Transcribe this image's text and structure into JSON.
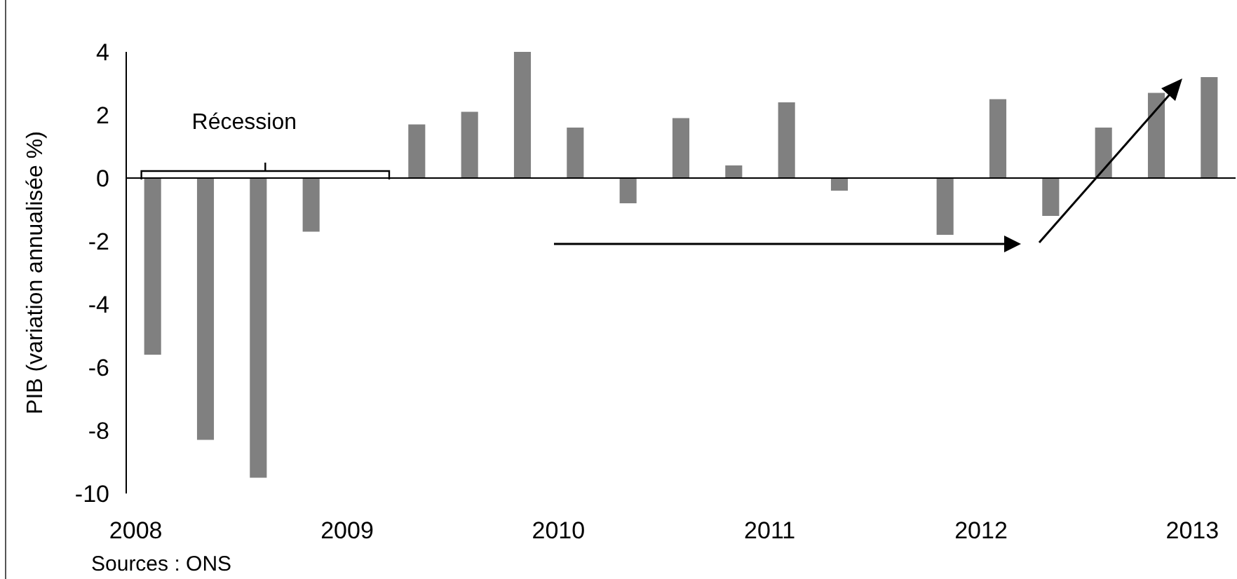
{
  "chart_data": {
    "type": "bar",
    "ylabel": "PIB (variation annualisée %)",
    "categories": [
      "2008",
      null,
      null,
      null,
      "2009",
      null,
      null,
      null,
      "2010",
      null,
      null,
      null,
      "2011",
      null,
      null,
      null,
      "2012",
      null,
      null,
      null,
      "2013"
    ],
    "values": [
      -5.6,
      -8.3,
      -9.5,
      -1.7,
      0,
      1.7,
      2.1,
      4.0,
      1.6,
      -0.8,
      1.9,
      0.4,
      2.4,
      -0.4,
      0,
      -1.8,
      2.5,
      -1.2,
      1.6,
      2.7,
      3.2
    ],
    "color": "#808080",
    "ylim": [
      -10,
      4
    ],
    "yticks": [
      -10,
      -8,
      -6,
      -4,
      -2,
      0,
      2,
      4
    ],
    "annotations": [
      "Récession",
      "Sources : ONS"
    ]
  }
}
